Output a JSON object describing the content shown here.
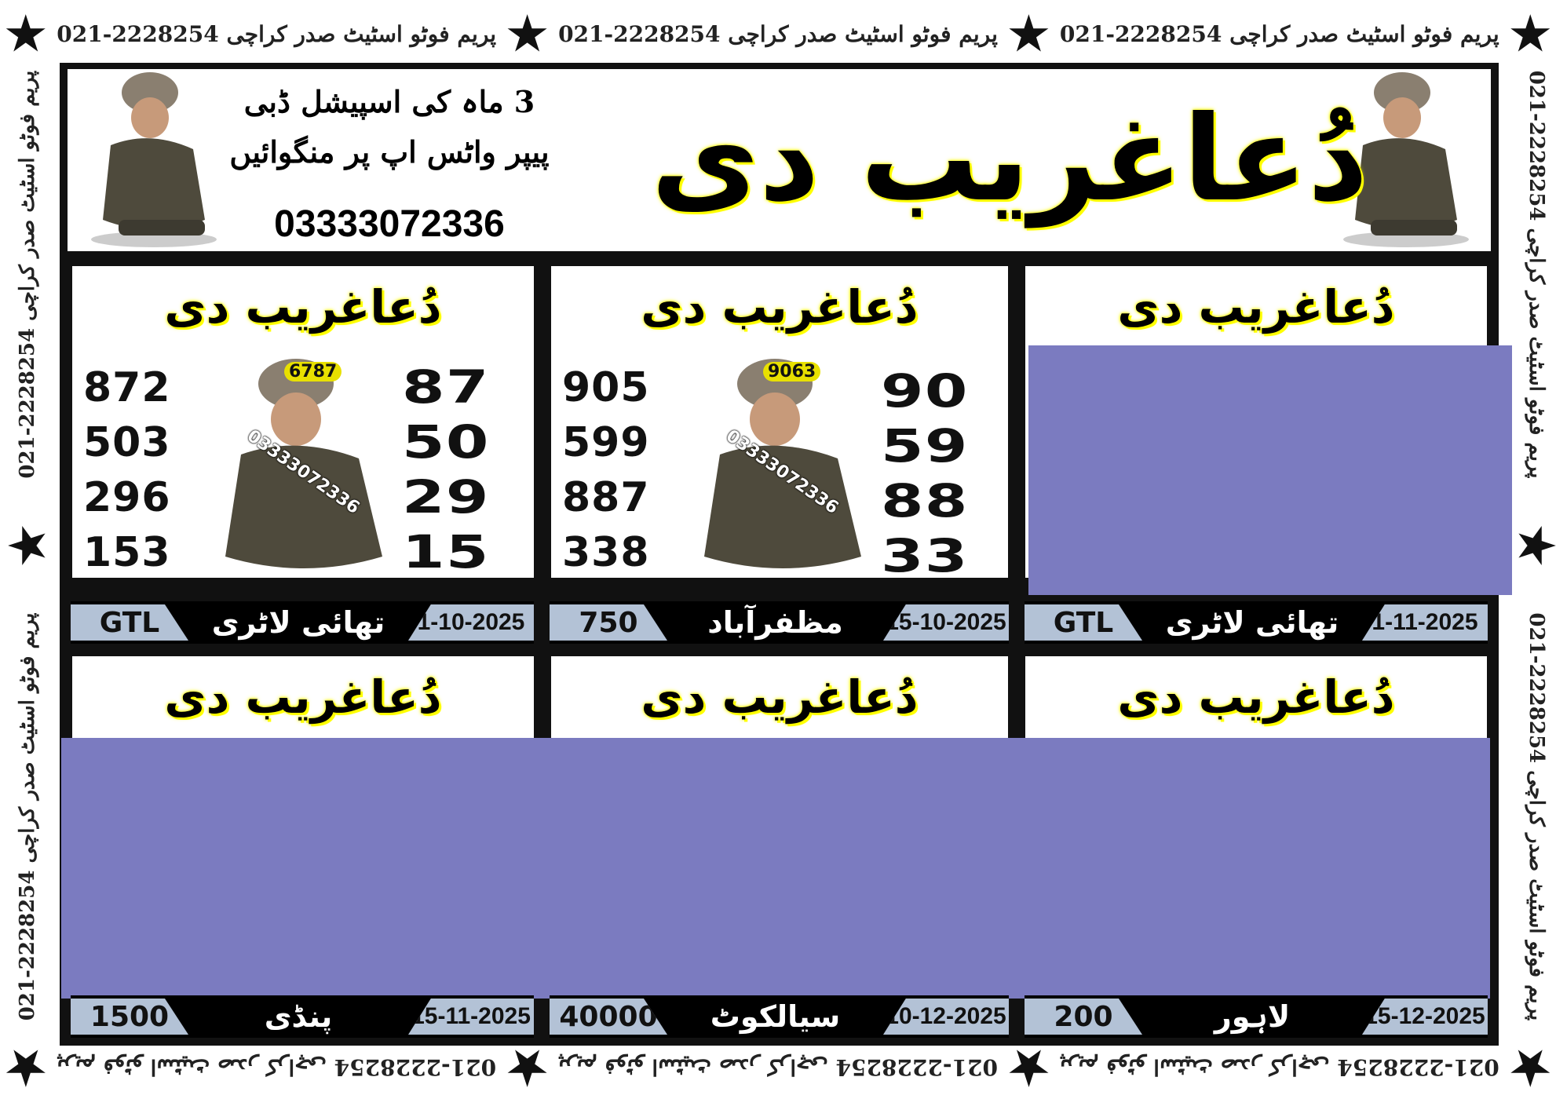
{
  "border": {
    "text": "021-2228254 پریم فوٹو اسٹیٹ صدر کراچی",
    "star_icon": "P"
  },
  "header": {
    "title": "دُعاغریب دی",
    "promo_line1": "3 ماہ کی اسپیشل ڈبی",
    "promo_line2": "پیپر واٹس اپ پر منگوائیں",
    "phone": "03333072336"
  },
  "panels": [
    {
      "title": "دُعاغریب دی",
      "badge": "6787",
      "watermark": "03333072336",
      "left": [
        "872",
        "503",
        "296",
        "153"
      ],
      "right": [
        "87",
        "50",
        "29",
        "15"
      ]
    },
    {
      "title": "دُعاغریب دی",
      "badge": "9063",
      "watermark": "03333072336",
      "left": [
        "905",
        "599",
        "887",
        "338"
      ],
      "right": [
        "90",
        "59",
        "88",
        "33"
      ]
    },
    {
      "title": "دُعاغریب دی"
    },
    {
      "title": "دُعاغریب دی"
    },
    {
      "title": "دُعاغریب دی"
    },
    {
      "title": "دُعاغریب دی"
    }
  ],
  "bars": [
    {
      "code": "GTL",
      "name": "تھائی لاٹری",
      "date": "1-10-2025"
    },
    {
      "code": "750",
      "name": "مظفرآباد",
      "date": "15-10-2025"
    },
    {
      "code": "GTL",
      "name": "تھائی لاٹری",
      "date": "1-11-2025"
    },
    {
      "code": "1500",
      "name": "پنڈی",
      "date": "15-11-2025"
    },
    {
      "code": "40000",
      "name": "سیالکوٹ",
      "date": "10-12-2025"
    },
    {
      "code": "200",
      "name": "لاہور",
      "date": "15-12-2025"
    }
  ],
  "colors": {
    "highlight": "#ffff00",
    "bar": "#b3c2d6",
    "redaction": "#7b7bc0"
  }
}
